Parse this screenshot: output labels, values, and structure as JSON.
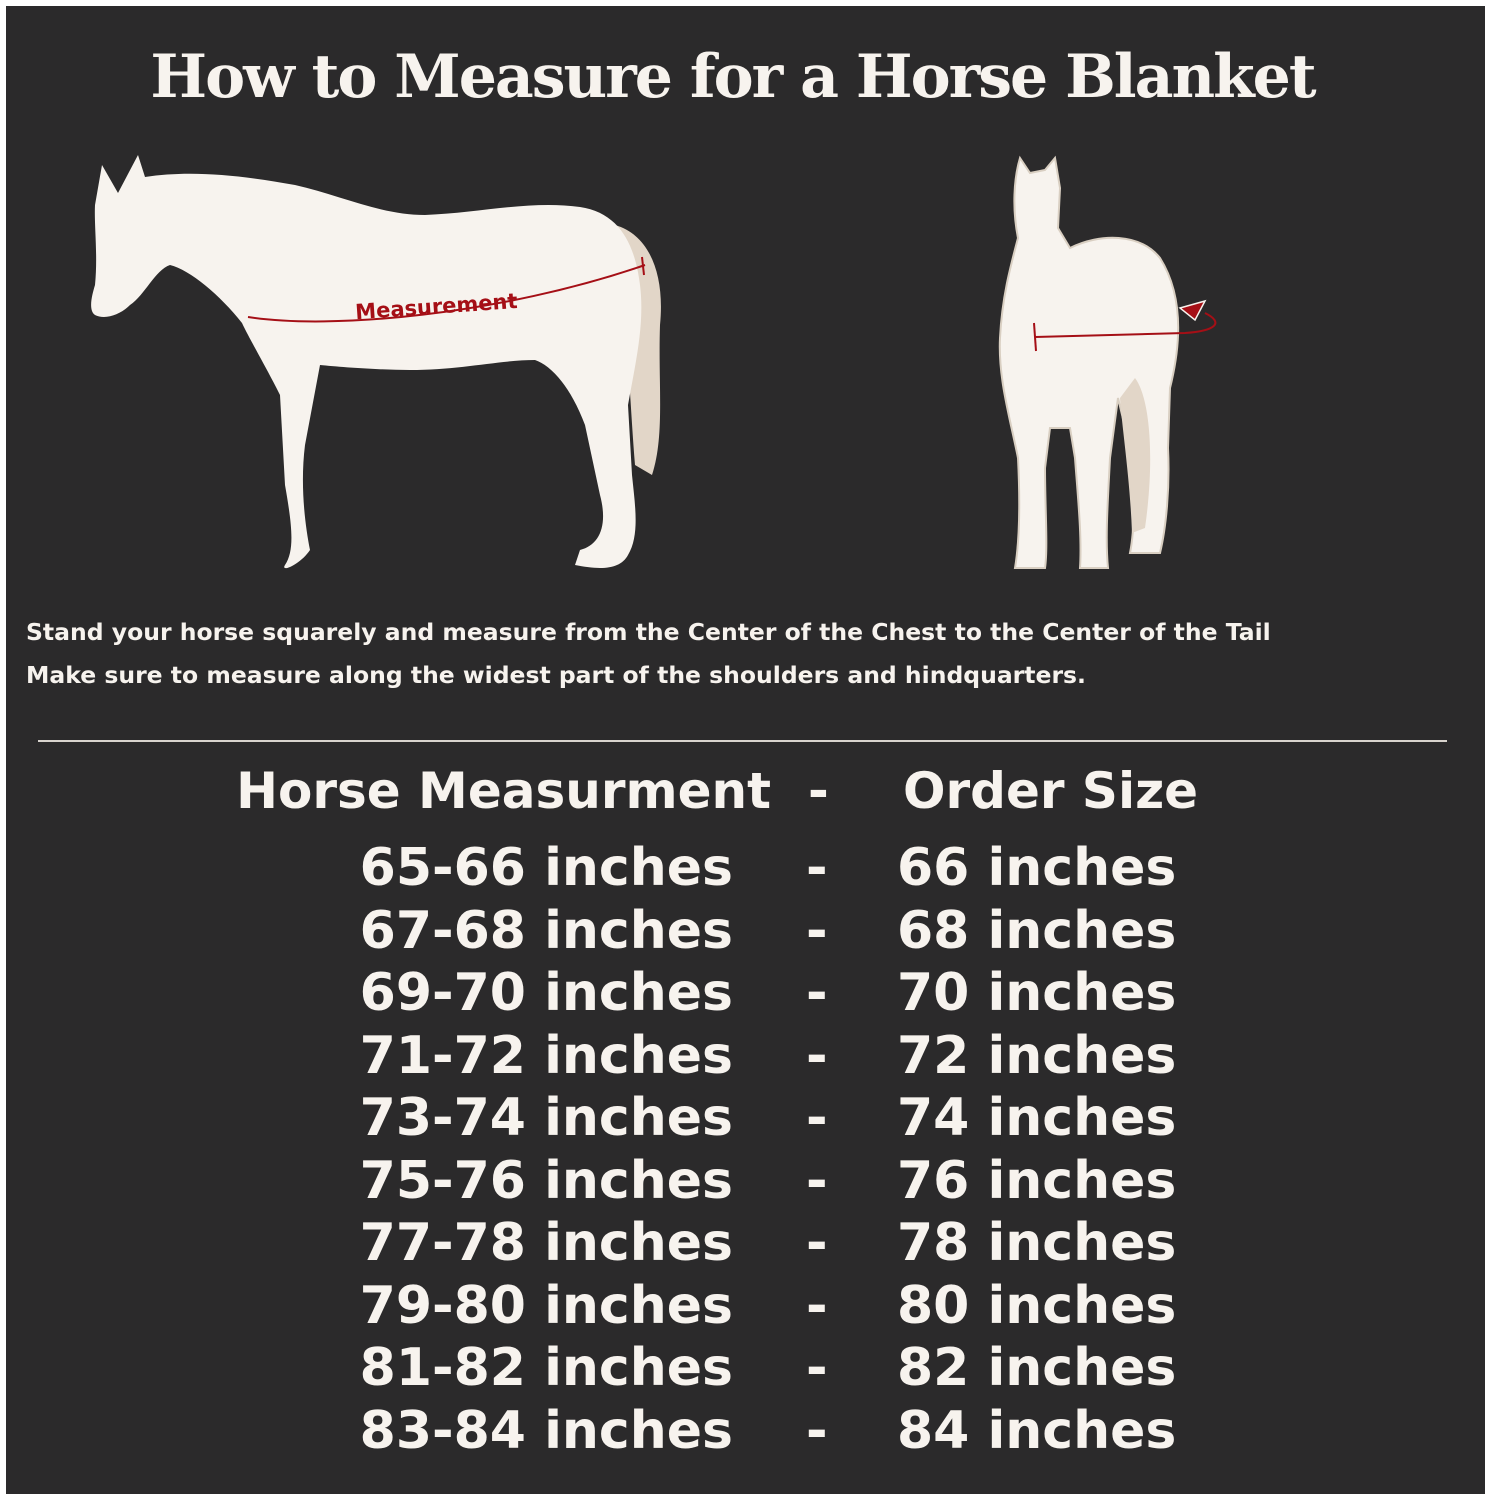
{
  "title": "How to Measure for a Horse Blanket",
  "diagram": {
    "side_label": "Measurement",
    "colors": {
      "background": "#2b2a2b",
      "horse": "#f7f3ee",
      "tail": "#e2d6c8",
      "measure_line": "#a50f16"
    }
  },
  "instructions": [
    "Stand your horse squarely and measure from the Center of the Chest to the Center of the Tail",
    "Make sure to measure along the widest part of the shoulders and hindquarters."
  ],
  "table": {
    "headers": {
      "measurement": "Horse Measurment",
      "separator": "-",
      "size": "Order Size"
    },
    "rows": [
      {
        "measurement": "65-66 inches",
        "separator": "-",
        "size": "66 inches"
      },
      {
        "measurement": "67-68 inches",
        "separator": "-",
        "size": "68 inches"
      },
      {
        "measurement": "69-70 inches",
        "separator": "-",
        "size": "70 inches"
      },
      {
        "measurement": "71-72 inches",
        "separator": "-",
        "size": "72 inches"
      },
      {
        "measurement": "73-74 inches",
        "separator": "-",
        "size": "74 inches"
      },
      {
        "measurement": "75-76 inches",
        "separator": "-",
        "size": "76 inches"
      },
      {
        "measurement": "77-78 inches",
        "separator": "-",
        "size": "78 inches"
      },
      {
        "measurement": "79-80 inches",
        "separator": "-",
        "size": "80 inches"
      },
      {
        "measurement": "81-82 inches",
        "separator": "-",
        "size": "82 inches"
      },
      {
        "measurement": "83-84 inches",
        "separator": "-",
        "size": "84 inches"
      }
    ]
  }
}
